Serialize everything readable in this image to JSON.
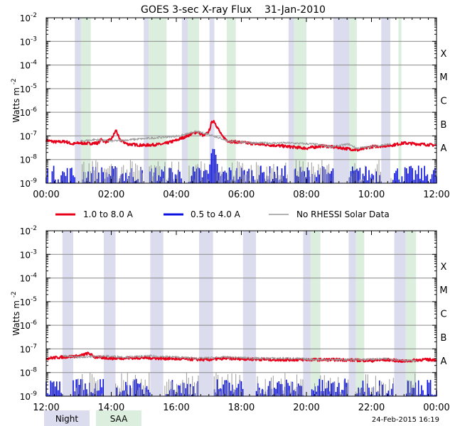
{
  "title": "GOES 3-sec X-ray Flux    31-Jan-2010",
  "ylabel": "Watts m",
  "ylabel_sup": "-2",
  "y_tick_base": "10",
  "y_tick_exponents": [
    "-9",
    "-8",
    "-7",
    "-6",
    "-5",
    "-4",
    "-3",
    "-2"
  ],
  "flare_classes": [
    "A",
    "B",
    "C",
    "M",
    "X"
  ],
  "legend": {
    "series": [
      "1.0 to 8.0 A",
      "0.5 to 4.0 A",
      "No RHESSI Solar Data"
    ],
    "shading": [
      "Night",
      "SAA"
    ]
  },
  "timestamp": "24-Feb-2015 16:19",
  "colors": {
    "long": "#e8001a",
    "short": "#0a10e0",
    "no_data": "#9a9a9a",
    "night": "#dcdcef",
    "saa": "#dcefdf",
    "grid": "#8a8a8a"
  },
  "chart_data": [
    {
      "type": "line",
      "panel": "top",
      "x_unit": "hours UT",
      "xlim": [
        0,
        12
      ],
      "x_tick_labels": [
        "00:00",
        "02:00",
        "04:00",
        "06:00",
        "08:00",
        "10:00",
        "12:00"
      ],
      "ylim": [
        1e-09,
        0.01
      ],
      "yscale": "log",
      "grid": true,
      "night_intervals": [
        [
          0.88,
          1.07
        ],
        [
          3.0,
          3.15
        ],
        [
          4.17,
          4.35
        ],
        [
          5.02,
          5.17
        ],
        [
          7.45,
          7.62
        ],
        [
          8.83,
          9.32
        ],
        [
          10.3,
          10.58
        ]
      ],
      "saa_intervals": [
        [
          1.07,
          1.37
        ],
        [
          3.15,
          3.7
        ],
        [
          4.35,
          4.7
        ],
        [
          5.55,
          5.83
        ],
        [
          7.62,
          8.0
        ],
        [
          9.32,
          9.55
        ],
        [
          10.83,
          10.92
        ]
      ],
      "series": [
        {
          "name": "1.0 to 8.0 A",
          "color": "red",
          "points": [
            [
              0.0,
              6.5e-08
            ],
            [
              0.3,
              5.5e-08
            ],
            [
              0.6,
              5.8e-08
            ],
            [
              0.8,
              4.5e-08
            ],
            [
              1.0,
              5e-08
            ],
            [
              1.3,
              4.8e-08
            ],
            [
              1.6,
              5e-08
            ],
            [
              1.7,
              7.5e-08
            ],
            [
              1.8,
              5.5e-08
            ],
            [
              2.0,
              7e-08
            ],
            [
              2.15,
              1.8e-07
            ],
            [
              2.25,
              7e-08
            ],
            [
              2.5,
              4.5e-08
            ],
            [
              3.0,
              4e-08
            ],
            [
              3.6,
              4.5e-08
            ],
            [
              4.0,
              6.5e-08
            ],
            [
              4.4,
              1.1e-07
            ],
            [
              4.65,
              1.5e-07
            ],
            [
              4.85,
              1e-07
            ],
            [
              5.0,
              1.5e-07
            ],
            [
              5.08,
              3.5e-07
            ],
            [
              5.15,
              4.5e-07
            ],
            [
              5.25,
              2.5e-07
            ],
            [
              5.4,
              1e-07
            ],
            [
              5.6,
              6e-08
            ],
            [
              6.5,
              4.5e-08
            ],
            [
              7.0,
              4e-08
            ],
            [
              8.0,
              3e-08
            ],
            [
              8.5,
              3.8e-08
            ],
            [
              9.0,
              3.2e-08
            ],
            [
              9.6,
              2.5e-08
            ],
            [
              10.0,
              3.5e-08
            ],
            [
              10.6,
              4e-08
            ],
            [
              11.0,
              5e-08
            ],
            [
              11.5,
              4.5e-08
            ],
            [
              12.0,
              4e-08
            ]
          ]
        },
        {
          "name": "0.5 to 4.0 A",
          "color": "blue",
          "points": [
            [
              0.0,
              1e-09
            ],
            [
              4.9,
              1e-09
            ],
            [
              5.0,
              3e-09
            ],
            [
              5.08,
              2e-08
            ],
            [
              5.15,
              3.5e-08
            ],
            [
              5.22,
              1.5e-08
            ],
            [
              5.3,
              3e-09
            ],
            [
              5.45,
              1e-09
            ],
            [
              12.0,
              1e-09
            ]
          ]
        },
        {
          "name": "No RHESSI Solar Data",
          "color": "gray",
          "points": [
            [
              1.05,
              6e-08
            ],
            [
              1.5,
              7e-08
            ],
            [
              2.0,
              6e-08
            ],
            [
              4.1,
              1e-07
            ],
            [
              4.6,
              1.5e-07
            ],
            [
              5.0,
              1.2e-07
            ],
            [
              5.6,
              6e-08
            ],
            [
              6.5,
              5e-08
            ],
            [
              7.5,
              5e-08
            ],
            [
              8.2,
              4.5e-08
            ],
            [
              8.8,
              3.5e-08
            ],
            [
              9.3,
              4.5e-08
            ],
            [
              9.55,
              3e-08
            ],
            [
              10.6,
              4.5e-08
            ]
          ]
        }
      ]
    },
    {
      "type": "line",
      "panel": "bottom",
      "x_unit": "hours UT",
      "xlim": [
        12,
        24
      ],
      "x_tick_labels": [
        "12:00",
        "14:00",
        "16:00",
        "18:00",
        "20:00",
        "22:00",
        "00:00"
      ],
      "ylim": [
        1e-09,
        0.01
      ],
      "yscale": "log",
      "grid": true,
      "night_intervals": [
        [
          12.5,
          12.83
        ],
        [
          13.77,
          14.13
        ],
        [
          15.2,
          15.6
        ],
        [
          16.7,
          17.13
        ],
        [
          18.05,
          18.45
        ],
        [
          19.9,
          20.13
        ],
        [
          21.3,
          21.52
        ],
        [
          22.7,
          23.05
        ]
      ],
      "saa_intervals": [
        [
          20.13,
          20.43
        ],
        [
          21.52,
          21.78
        ],
        [
          23.05,
          23.37
        ]
      ],
      "series": [
        {
          "name": "1.0 to 8.0 A",
          "color": "red",
          "points": [
            [
              12.0,
              4e-08
            ],
            [
              12.5,
              4.5e-08
            ],
            [
              13.0,
              5e-08
            ],
            [
              13.3,
              6.5e-08
            ],
            [
              13.5,
              4.5e-08
            ],
            [
              14.0,
              4e-08
            ],
            [
              15.0,
              4.2e-08
            ],
            [
              16.0,
              3.8e-08
            ],
            [
              17.0,
              3.5e-08
            ],
            [
              17.5,
              4e-08
            ],
            [
              18.0,
              3.8e-08
            ],
            [
              19.0,
              3.5e-08
            ],
            [
              20.0,
              3.5e-08
            ],
            [
              21.0,
              3.5e-08
            ],
            [
              22.0,
              3.2e-08
            ],
            [
              22.5,
              3.5e-08
            ],
            [
              23.0,
              3e-08
            ],
            [
              23.5,
              3.5e-08
            ],
            [
              24.0,
              3.5e-08
            ]
          ]
        },
        {
          "name": "0.5 to 4.0 A",
          "color": "blue",
          "points": [
            [
              12.0,
              1e-09
            ],
            [
              24.0,
              1e-09
            ]
          ]
        },
        {
          "name": "No RHESSI Solar Data",
          "color": "gray",
          "points": [
            [
              12.5,
              5e-08
            ],
            [
              13.0,
              4.5e-08
            ],
            [
              13.77,
              5e-08
            ],
            [
              14.5,
              4.5e-08
            ],
            [
              15.2,
              5e-08
            ],
            [
              16.0,
              4.5e-08
            ],
            [
              16.7,
              4e-08
            ],
            [
              17.5,
              4.5e-08
            ],
            [
              18.5,
              4e-08
            ],
            [
              19.5,
              4e-08
            ],
            [
              20.4,
              3.5e-08
            ],
            [
              21.5,
              3.5e-08
            ],
            [
              22.5,
              3.8e-08
            ],
            [
              23.4,
              3e-08
            ]
          ]
        }
      ]
    }
  ]
}
